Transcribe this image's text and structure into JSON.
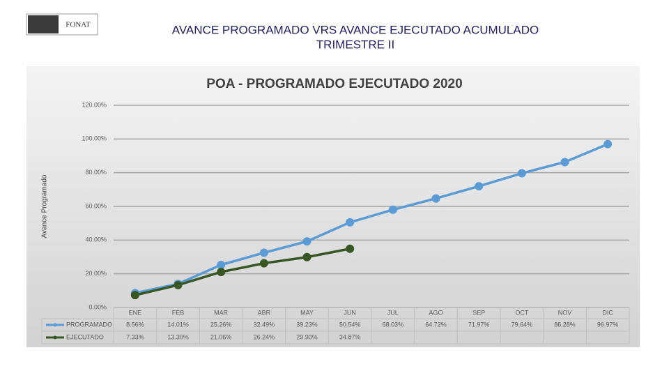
{
  "header": {
    "logo": "FONAT",
    "title": "AVANCE PROGRAMADO VRS AVANCE EJECUTADO ACUMULADO",
    "subtitle": "TRIMESTRE II"
  },
  "chart_data": {
    "type": "line",
    "title": "POA - PROGRAMADO EJECUTADO 2020",
    "y_label": "Avance Programado",
    "categories": [
      "ENE",
      "FEB",
      "MAR",
      "ABR",
      "MAY",
      "JUN",
      "JUL",
      "AGO",
      "SEP",
      "OCT",
      "NOV",
      "DIC"
    ],
    "series": [
      {
        "name": "PROGRAMADO",
        "color": "#5b9bd5",
        "values": [
          8.56,
          14.01,
          25.26,
          32.49,
          39.23,
          50.54,
          58.03,
          64.72,
          71.97,
          79.64,
          86.28,
          96.97
        ],
        "value_labels": [
          "8.56%",
          "14.01%",
          "25.26%",
          "32.49%",
          "39.23%",
          "50.54%",
          "58.03%",
          "64.72%",
          "71.97%",
          "79.64%",
          "86.28%",
          "96.97%"
        ]
      },
      {
        "name": "EJECUTADO",
        "color": "#375623",
        "values": [
          7.33,
          13.3,
          21.06,
          26.24,
          29.9,
          34.87,
          null,
          null,
          null,
          null,
          null,
          null
        ],
        "value_labels": [
          "7.33%",
          "13.30%",
          "21.06%",
          "26.24%",
          "29.90%",
          "34.87%",
          null,
          null,
          null,
          null,
          null,
          null
        ]
      }
    ],
    "ylim": [
      0,
      120
    ],
    "yticks": [
      {
        "value": 0,
        "label": "0.00%"
      },
      {
        "value": 20,
        "label": "20.00%"
      },
      {
        "value": 40,
        "label": "40.00%"
      },
      {
        "value": 60,
        "label": "60.00%"
      },
      {
        "value": 80,
        "label": "80.00%"
      },
      {
        "value": 100,
        "label": "100.00%"
      },
      {
        "value": 120,
        "label": "120.00%"
      }
    ],
    "grid": true
  }
}
